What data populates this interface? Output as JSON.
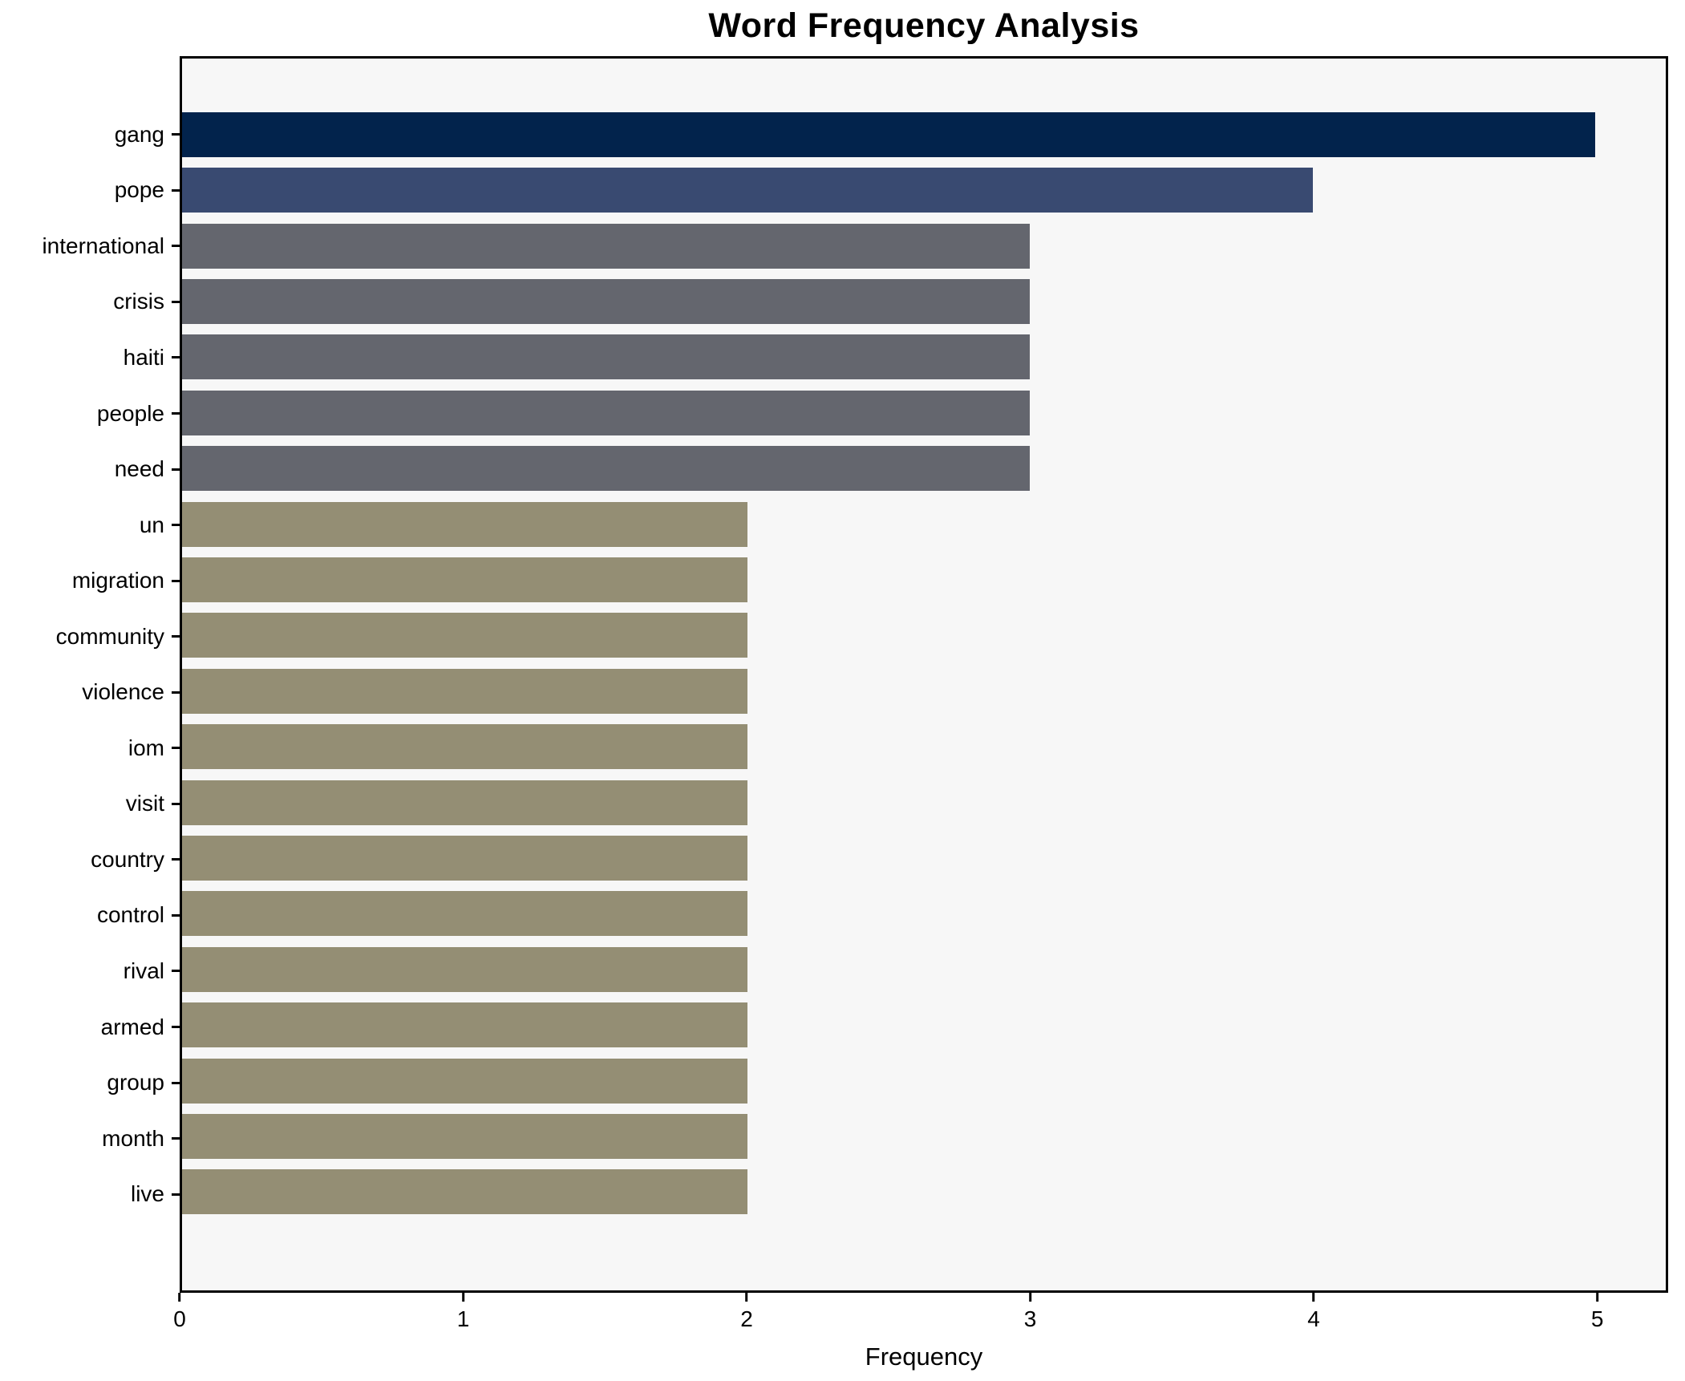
{
  "chart_data": {
    "type": "bar",
    "orientation": "horizontal",
    "title": "Word Frequency Analysis",
    "xlabel": "Frequency",
    "ylabel": "",
    "xlim": [
      0,
      5.25
    ],
    "x_ticks": [
      0,
      1,
      2,
      3,
      4,
      5
    ],
    "grid": false,
    "legend": false,
    "plot_background": "#f7f7f7",
    "figure_background": "#ffffff",
    "axis_color": "#000000",
    "categories": [
      "gang",
      "pope",
      "international",
      "crisis",
      "haiti",
      "people",
      "need",
      "un",
      "migration",
      "community",
      "violence",
      "iom",
      "visit",
      "country",
      "control",
      "rival",
      "armed",
      "group",
      "month",
      "live"
    ],
    "values": [
      5,
      4,
      3,
      3,
      3,
      3,
      3,
      2,
      2,
      2,
      2,
      2,
      2,
      2,
      2,
      2,
      2,
      2,
      2,
      2
    ],
    "bar_colors": [
      "#02234c",
      "#394a71",
      "#64666e",
      "#64666e",
      "#64666e",
      "#64666e",
      "#64666e",
      "#948e74",
      "#948e74",
      "#948e74",
      "#948e74",
      "#948e74",
      "#948e74",
      "#948e74",
      "#948e74",
      "#948e74",
      "#948e74",
      "#948e74",
      "#948e74",
      "#948e74"
    ],
    "color_legend": {
      "frequency_5": "#02234c",
      "frequency_4": "#394a71",
      "frequency_3": "#64666e",
      "frequency_2": "#948e74"
    }
  }
}
